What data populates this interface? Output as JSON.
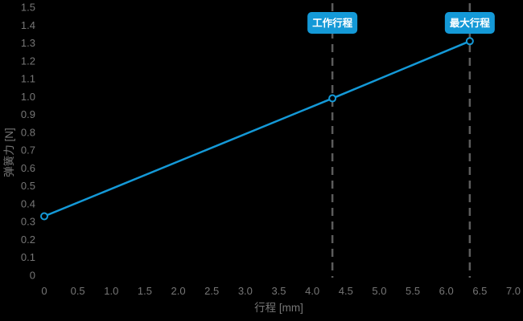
{
  "chart_data": {
    "type": "line",
    "title": "",
    "xlabel": "行程 [mm]",
    "ylabel": "弹簧力 [N]",
    "xlim": [
      0,
      7
    ],
    "ylim": [
      0,
      1.5
    ],
    "grid": false,
    "legend": "none",
    "x_ticks": [
      {
        "value": 0,
        "label": "0"
      },
      {
        "value": 0.5,
        "label": "0.5"
      },
      {
        "value": 1.0,
        "label": "1.0"
      },
      {
        "value": 1.5,
        "label": "1.5"
      },
      {
        "value": 2.0,
        "label": "2.0"
      },
      {
        "value": 2.5,
        "label": "2.5"
      },
      {
        "value": 3.0,
        "label": "3.0"
      },
      {
        "value": 3.5,
        "label": "3.5"
      },
      {
        "value": 4.0,
        "label": "4.0"
      },
      {
        "value": 4.5,
        "label": "4.5"
      },
      {
        "value": 5.0,
        "label": "5.0"
      },
      {
        "value": 5.5,
        "label": "5.5"
      },
      {
        "value": 6.0,
        "label": "6.0"
      },
      {
        "value": 6.5,
        "label": "6.5"
      },
      {
        "value": 7.0,
        "label": "7.0"
      }
    ],
    "y_ticks": [
      {
        "value": 0,
        "label": "0"
      },
      {
        "value": 0.1,
        "label": "0.1"
      },
      {
        "value": 0.2,
        "label": "0.2"
      },
      {
        "value": 0.3,
        "label": "0.3"
      },
      {
        "value": 0.4,
        "label": "0.4"
      },
      {
        "value": 0.5,
        "label": "0.5"
      },
      {
        "value": 0.6,
        "label": "0.6"
      },
      {
        "value": 0.7,
        "label": "0.7"
      },
      {
        "value": 0.8,
        "label": "0.8"
      },
      {
        "value": 0.9,
        "label": "0.9"
      },
      {
        "value": 1.0,
        "label": "1.0"
      },
      {
        "value": 1.1,
        "label": "1.1"
      },
      {
        "value": 1.2,
        "label": "1.2"
      },
      {
        "value": 1.3,
        "label": "1.3"
      },
      {
        "value": 1.4,
        "label": "1.4"
      },
      {
        "value": 1.5,
        "label": "1.5"
      }
    ],
    "series": [
      {
        "marker": "open-circle",
        "points": [
          {
            "x": 0,
            "y": 0.33
          },
          {
            "x": 4.3,
            "y": 0.99
          },
          {
            "x": 6.35,
            "y": 1.31
          }
        ]
      }
    ],
    "reference_lines": [
      {
        "x": 4.3,
        "label": "工作行程",
        "style": "dashed"
      },
      {
        "x": 6.35,
        "label": "最大行程",
        "style": "dashed"
      }
    ],
    "colors": {
      "background": "#000000",
      "accent": "#1499d7",
      "text": "#767676",
      "dashed": "#5c5c5c",
      "badge_text": "#ffffff"
    }
  }
}
